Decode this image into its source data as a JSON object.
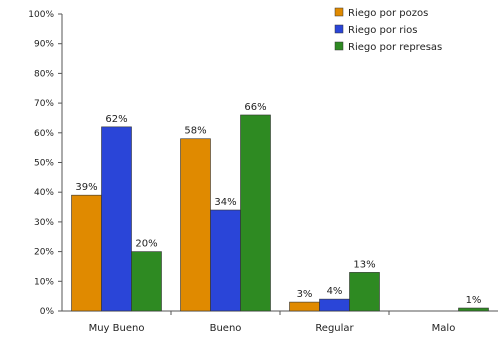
{
  "chart_data": {
    "type": "bar",
    "categories": [
      "Muy Bueno",
      "Bueno",
      "Regular",
      "Malo"
    ],
    "series": [
      {
        "name": "Riego por pozos",
        "color": "#e08a00",
        "values": [
          39,
          58,
          3,
          0
        ],
        "labels": [
          "39%",
          "58%",
          "3%",
          ""
        ]
      },
      {
        "name": "Riego por rios",
        "color": "#2a45d8",
        "values": [
          62,
          34,
          4,
          0
        ],
        "labels": [
          "62%",
          "34%",
          "4%",
          ""
        ]
      },
      {
        "name": "Riego por represas",
        "color": "#2e8a22",
        "values": [
          20,
          66,
          13,
          1
        ],
        "labels": [
          "20%",
          "66%",
          "13%",
          "1%"
        ]
      }
    ],
    "ylim": [
      0,
      100
    ],
    "yticks": [
      "0%",
      "10%",
      "20%",
      "30%",
      "40%",
      "50%",
      "60%",
      "70%",
      "80%",
      "90%",
      "100%"
    ],
    "ytick_values": [
      0,
      10,
      20,
      30,
      40,
      50,
      60,
      70,
      80,
      90,
      100
    ],
    "legend_position": "top-right",
    "grid": false
  }
}
